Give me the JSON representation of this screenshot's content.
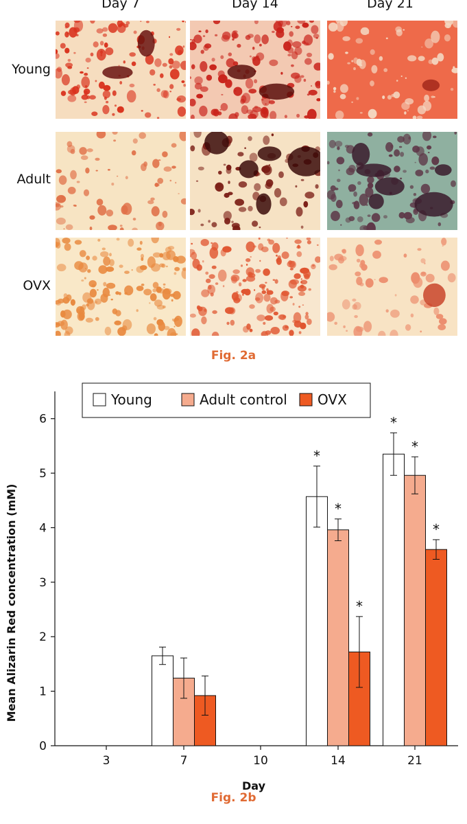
{
  "figure_a": {
    "columns": [
      "Day 7",
      "Day 14",
      "Day 21"
    ],
    "rows": [
      "Young",
      "Adult",
      "OVX"
    ],
    "caption": "Fig. 2a"
  },
  "figure_b": {
    "caption": "Fig. 2b"
  },
  "chart_data": {
    "type": "bar",
    "categories": [
      "3",
      "7",
      "10",
      "14",
      "21"
    ],
    "xlabel": "Day",
    "ylabel": "Mean Alizarin Red concentration (mM)",
    "ylim": [
      0,
      6.5
    ],
    "yticks": [
      0,
      1,
      2,
      3,
      4,
      5,
      6
    ],
    "legend_position": "top-center",
    "series": [
      {
        "name": "Young",
        "color": "#ffffff",
        "values": [
          null,
          1.65,
          null,
          4.57,
          5.35
        ],
        "errors": [
          null,
          0.16,
          null,
          0.56,
          0.39
        ],
        "significant": [
          false,
          false,
          false,
          true,
          true
        ]
      },
      {
        "name": "Adult control",
        "color": "#f5ab8e",
        "values": [
          null,
          1.24,
          null,
          3.96,
          4.96
        ],
        "errors": [
          null,
          0.37,
          null,
          0.2,
          0.34
        ],
        "significant": [
          false,
          false,
          false,
          true,
          true
        ]
      },
      {
        "name": "OVX",
        "color": "#ee5a22",
        "values": [
          null,
          0.92,
          null,
          1.72,
          3.6
        ],
        "errors": [
          null,
          0.36,
          null,
          0.65,
          0.18
        ],
        "significant": [
          false,
          false,
          false,
          true,
          true
        ]
      }
    ],
    "significance_marker": "*"
  }
}
